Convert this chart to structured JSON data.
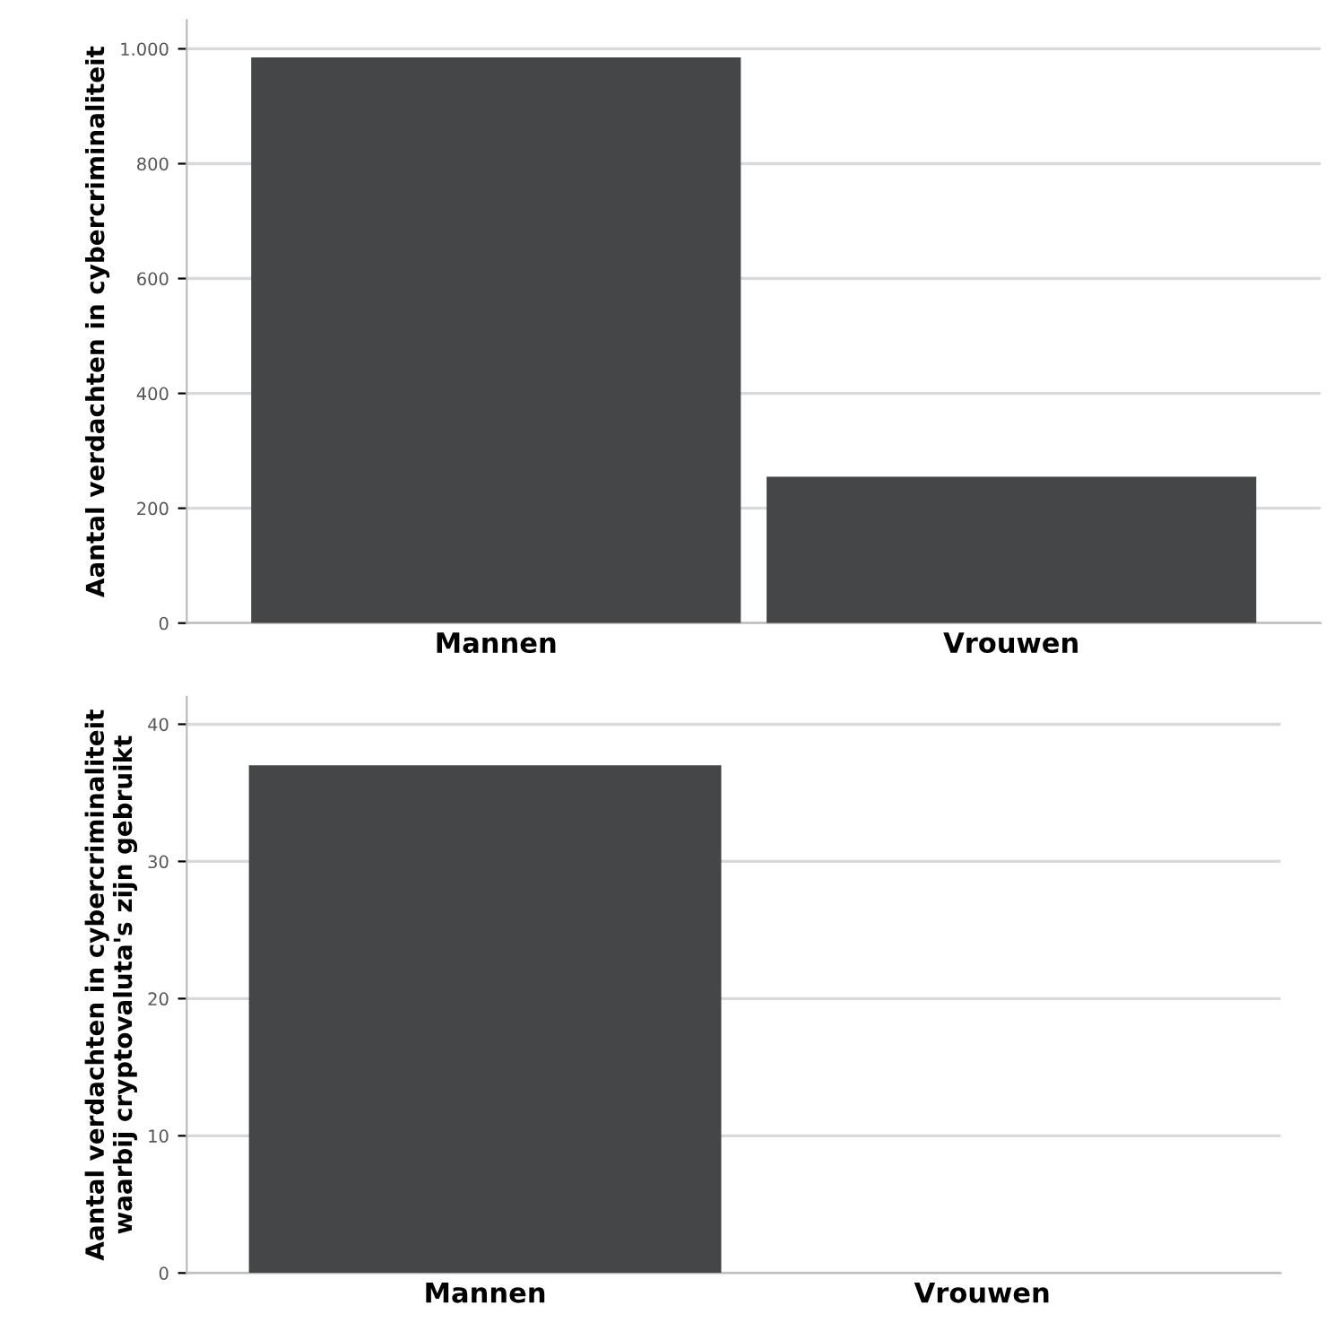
{
  "chart_data": [
    {
      "type": "bar",
      "ylabel": "Aantal verdachten in cybercriminaliteit",
      "categories": [
        "Mannen",
        "Vrouwen"
      ],
      "values": [
        985,
        255
      ],
      "color": "#454648",
      "ylim": [
        0,
        1050
      ],
      "yticks": [
        0,
        200,
        400,
        600,
        800,
        {
          "value": 1000,
          "label": "1.000"
        }
      ],
      "grid": "y"
    },
    {
      "type": "bar",
      "ylabel": "Aantal verdachten in cybercriminaliteit\nwaarbij cryptovaluta's zijn gebruikt",
      "categories": [
        "Mannen",
        "Vrouwen"
      ],
      "values": [
        37,
        0
      ],
      "color": "#454648",
      "ylim": [
        0,
        42
      ],
      "yticks": [
        0,
        10,
        20,
        30,
        40
      ],
      "grid": "y"
    }
  ]
}
